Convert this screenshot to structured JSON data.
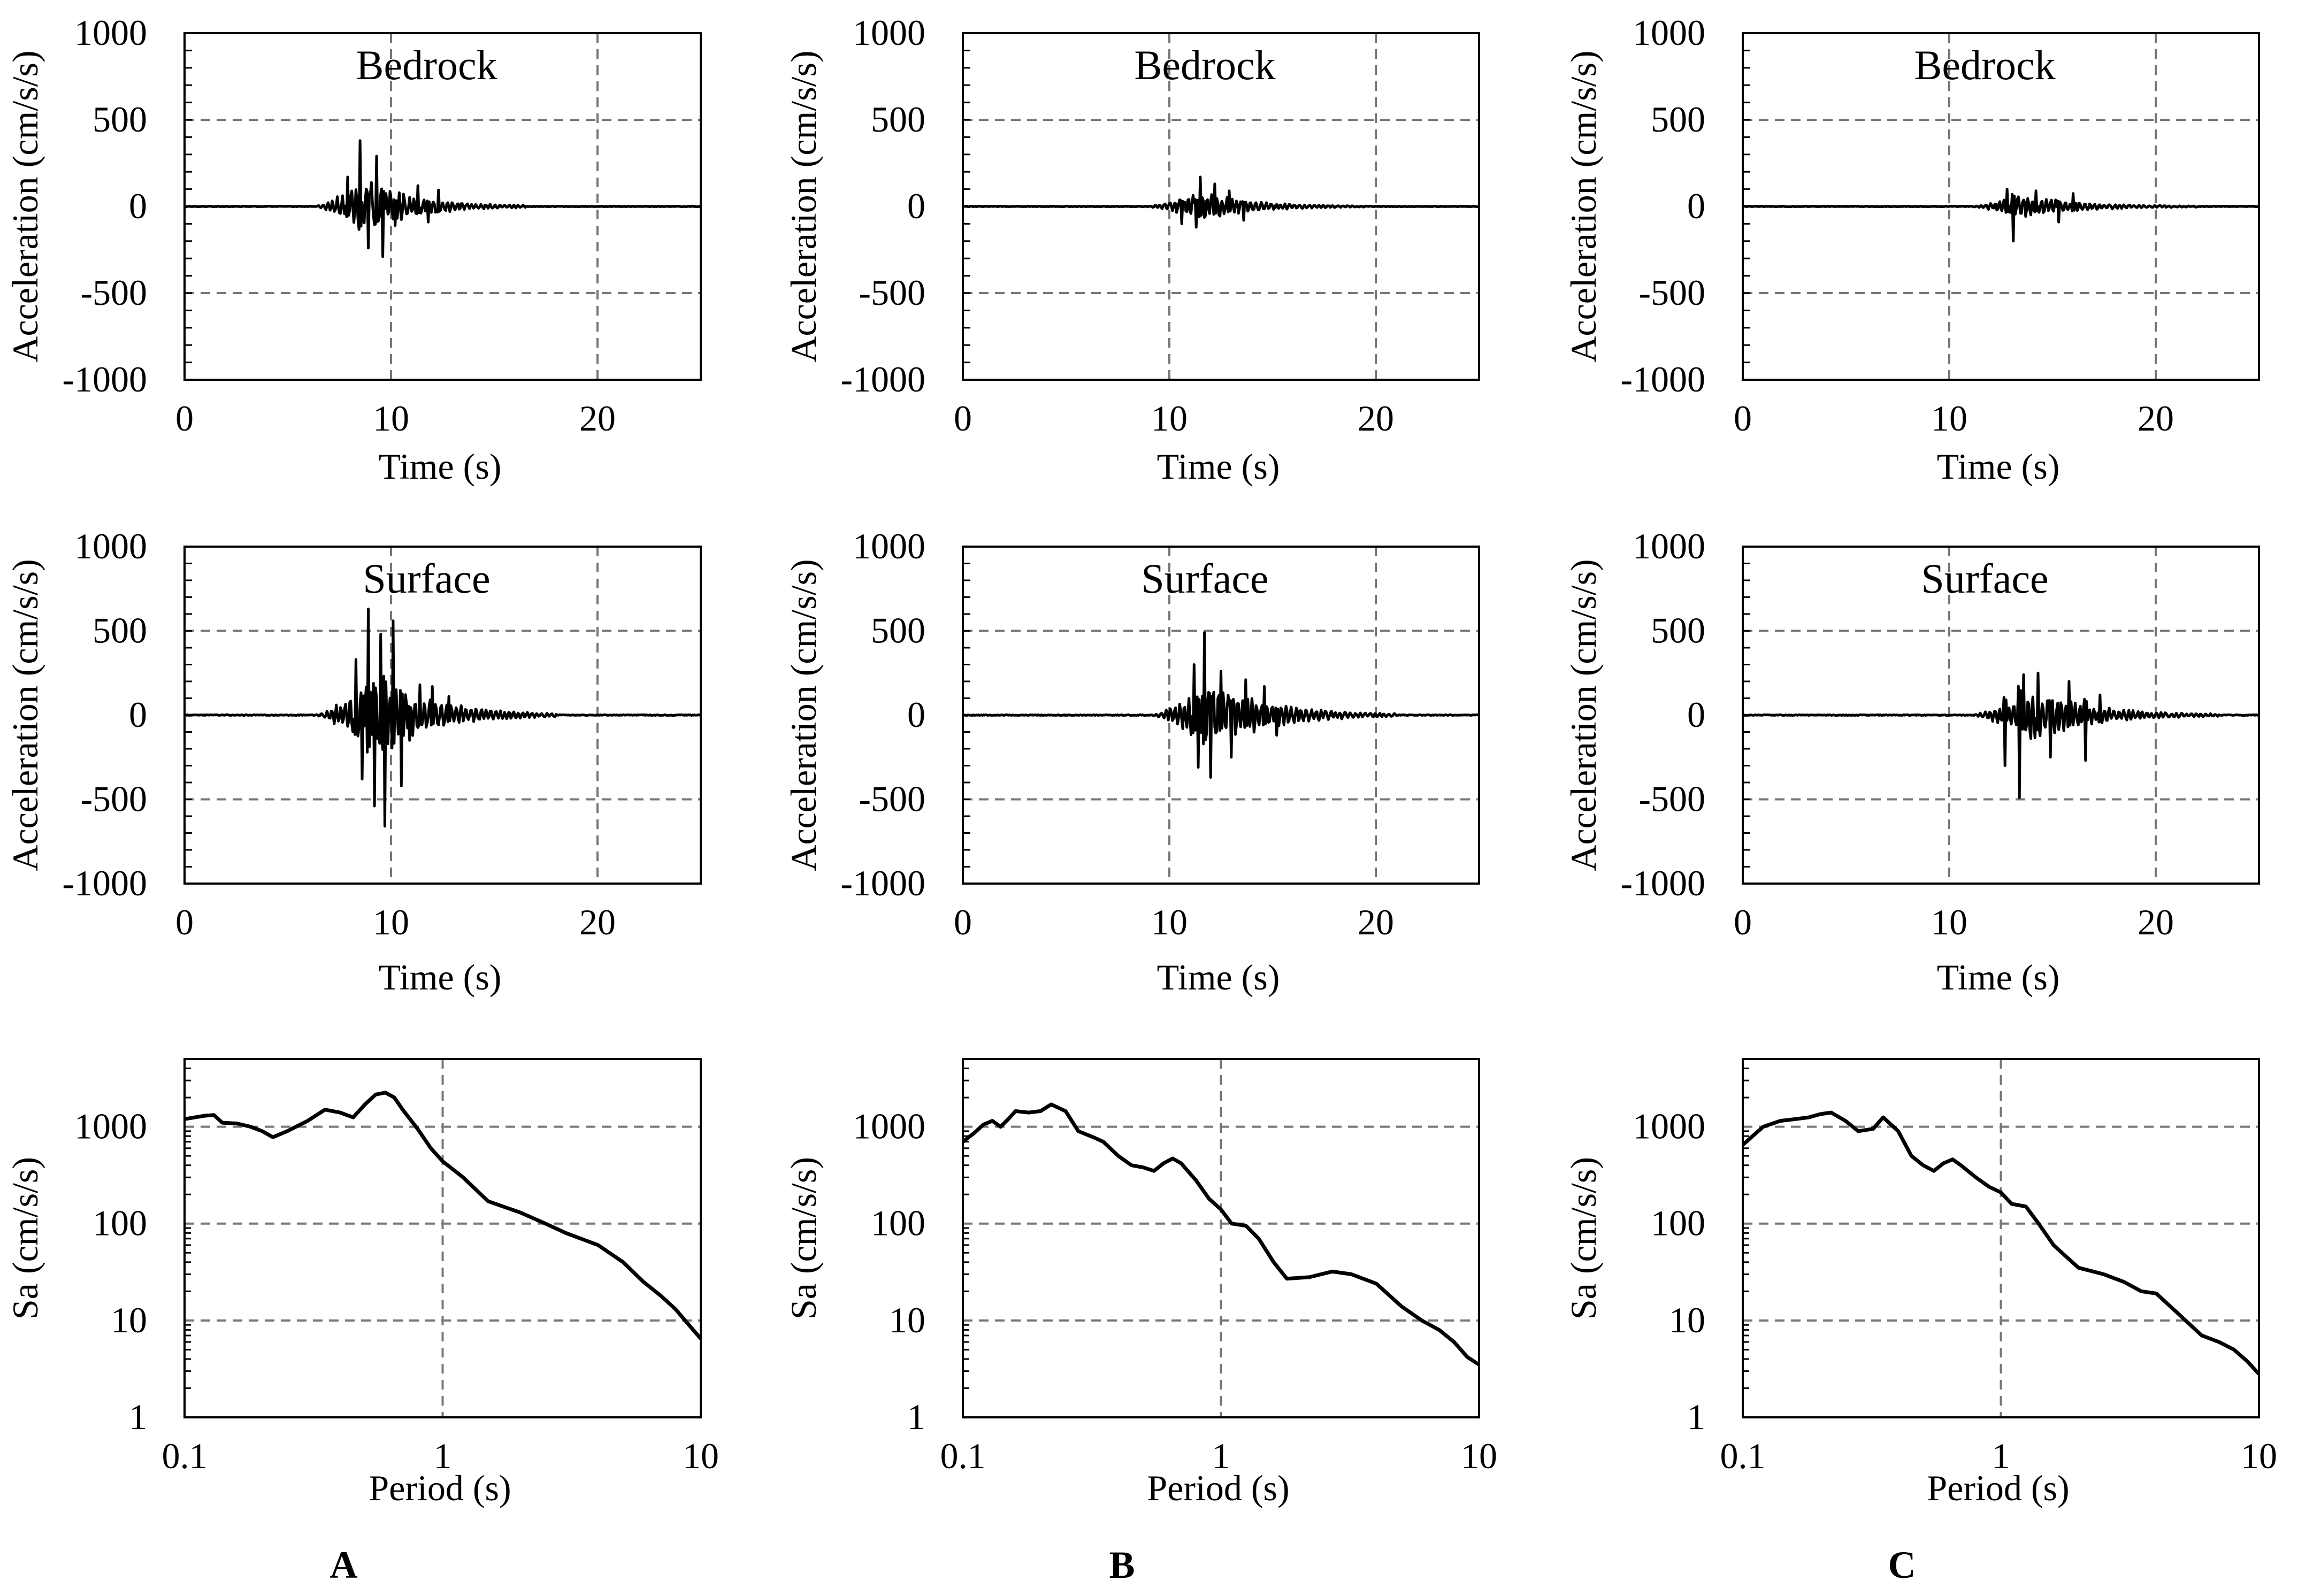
{
  "figure": {
    "columns": [
      "A",
      "B",
      "C"
    ]
  },
  "chart_data": [
    {
      "id": "A-bedrock",
      "column": "A",
      "type": "line",
      "title": "Bedrock",
      "xlabel": "Time (s)",
      "ylabel": "Acceleration (cm/s/s)",
      "xlim": [
        0,
        25
      ],
      "ylim": [
        -1000,
        1000
      ],
      "xticks": [
        0,
        10,
        20
      ],
      "yticks": [
        -1000,
        -500,
        0,
        500,
        1000
      ],
      "grid": "dashed",
      "series": [
        {
          "name": "acceleration",
          "duration": 25,
          "dt": 0.05,
          "envelope": {
            "start": 6.2,
            "peak": 8.7,
            "end": 16.5,
            "base_amp": 150
          },
          "peaks": [
            [
              8.5,
              380
            ],
            [
              8.9,
              -240
            ],
            [
              9.3,
              290
            ],
            [
              9.6,
              -290
            ],
            [
              7.9,
              170
            ],
            [
              10.2,
              -110
            ],
            [
              11.3,
              120
            ],
            [
              11.8,
              -90
            ],
            [
              12.3,
              95
            ]
          ]
        }
      ]
    },
    {
      "id": "B-bedrock",
      "column": "B",
      "type": "line",
      "title": "Bedrock",
      "xlabel": "Time (s)",
      "ylabel": "Acceleration (cm/s/s)",
      "xlim": [
        0,
        25
      ],
      "ylim": [
        -1000,
        1000
      ],
      "xticks": [
        0,
        10,
        20
      ],
      "yticks": [
        -1000,
        -500,
        0,
        500,
        1000
      ],
      "grid": "dashed",
      "series": [
        {
          "name": "acceleration",
          "duration": 25,
          "dt": 0.05,
          "envelope": {
            "start": 8.8,
            "peak": 11.5,
            "end": 19.5,
            "base_amp": 80
          },
          "peaks": [
            [
              11.5,
              170
            ],
            [
              11.3,
              -120
            ],
            [
              12.2,
              130
            ],
            [
              10.6,
              -100
            ],
            [
              12.9,
              90
            ],
            [
              13.6,
              -80
            ]
          ]
        }
      ]
    },
    {
      "id": "C-bedrock",
      "column": "C",
      "type": "line",
      "title": "Bedrock",
      "xlabel": "Time (s)",
      "ylabel": "Acceleration (cm/s/s)",
      "xlim": [
        0,
        25
      ],
      "ylim": [
        -1000,
        1000
      ],
      "xticks": [
        0,
        10,
        20
      ],
      "yticks": [
        -1000,
        -500,
        0,
        500,
        1000
      ],
      "grid": "dashed",
      "series": [
        {
          "name": "acceleration",
          "duration": 25,
          "dt": 0.05,
          "envelope": {
            "start": 11.0,
            "peak": 13.5,
            "end": 22.0,
            "base_amp": 65
          },
          "peaks": [
            [
              13.1,
              -200
            ],
            [
              12.8,
              100
            ],
            [
              14.2,
              90
            ],
            [
              15.3,
              -90
            ],
            [
              16.0,
              75
            ]
          ]
        }
      ]
    },
    {
      "id": "A-surface",
      "column": "A",
      "type": "line",
      "title": "Surface",
      "xlabel": "Time (s)",
      "ylabel": "Acceleration (cm/s/s)",
      "xlim": [
        0,
        25
      ],
      "ylim": [
        -1000,
        1000
      ],
      "xticks": [
        0,
        10,
        20
      ],
      "yticks": [
        -1000,
        -500,
        0,
        500,
        1000
      ],
      "grid": "dashed",
      "series": [
        {
          "name": "acceleration",
          "duration": 25,
          "dt": 0.05,
          "envelope": {
            "start": 6.2,
            "peak": 9.2,
            "end": 18.0,
            "base_amp": 240
          },
          "peaks": [
            [
              8.9,
              630
            ],
            [
              9.7,
              -660
            ],
            [
              10.1,
              560
            ],
            [
              9.2,
              -540
            ],
            [
              9.5,
              480
            ],
            [
              8.3,
              330
            ],
            [
              8.6,
              -380
            ],
            [
              10.5,
              -420
            ],
            [
              11.4,
              180
            ],
            [
              12.0,
              170
            ],
            [
              10.9,
              -150
            ],
            [
              12.8,
              110
            ]
          ]
        }
      ]
    },
    {
      "id": "B-surface",
      "column": "B",
      "type": "line",
      "title": "Surface",
      "xlabel": "Time (s)",
      "ylabel": "Acceleration (cm/s/s)",
      "xlim": [
        0,
        25
      ],
      "ylim": [
        -1000,
        1000
      ],
      "xticks": [
        0,
        10,
        20
      ],
      "yticks": [
        -1000,
        -500,
        0,
        500,
        1000
      ],
      "grid": "dashed",
      "series": [
        {
          "name": "acceleration",
          "duration": 25,
          "dt": 0.05,
          "envelope": {
            "start": 9.0,
            "peak": 12.0,
            "end": 21.0,
            "base_amp": 190
          },
          "peaks": [
            [
              11.7,
              490
            ],
            [
              12.0,
              -370
            ],
            [
              11.2,
              300
            ],
            [
              11.4,
              -310
            ],
            [
              12.5,
              260
            ],
            [
              13.0,
              -250
            ],
            [
              13.7,
              210
            ],
            [
              14.6,
              170
            ],
            [
              15.2,
              -120
            ]
          ]
        }
      ]
    },
    {
      "id": "C-surface",
      "column": "C",
      "type": "line",
      "title": "Surface",
      "xlabel": "Time (s)",
      "ylabel": "Acceleration (cm/s/s)",
      "xlim": [
        0,
        25
      ],
      "ylim": [
        -1000,
        1000
      ],
      "xticks": [
        0,
        10,
        20
      ],
      "yticks": [
        -1000,
        -500,
        0,
        500,
        1000
      ],
      "grid": "dashed",
      "series": [
        {
          "name": "acceleration",
          "duration": 25,
          "dt": 0.05,
          "envelope": {
            "start": 11.0,
            "peak": 14.0,
            "end": 23.0,
            "base_amp": 150
          },
          "peaks": [
            [
              13.4,
              -490
            ],
            [
              12.7,
              -300
            ],
            [
              13.6,
              240
            ],
            [
              14.3,
              250
            ],
            [
              14.9,
              -250
            ],
            [
              15.8,
              200
            ],
            [
              16.6,
              -270
            ],
            [
              17.3,
              120
            ]
          ]
        }
      ]
    },
    {
      "id": "A-spectrum",
      "column": "A",
      "type": "line",
      "xscale": "log",
      "yscale": "log",
      "title": "",
      "xlabel": "Period (s)",
      "ylabel": "Sa (cm/s/s)",
      "xlim": [
        0.1,
        10
      ],
      "ylim": [
        1,
        5000
      ],
      "xticks": [
        0.1,
        1,
        10
      ],
      "yticks": [
        1,
        10,
        100,
        1000
      ],
      "grid": "dashed",
      "series": [
        {
          "name": "Sa",
          "points": [
            [
              0.1,
              1200
            ],
            [
              0.12,
              1300
            ],
            [
              0.13,
              1320
            ],
            [
              0.14,
              1100
            ],
            [
              0.16,
              1080
            ],
            [
              0.18,
              1000
            ],
            [
              0.2,
              900
            ],
            [
              0.22,
              780
            ],
            [
              0.25,
              900
            ],
            [
              0.3,
              1150
            ],
            [
              0.35,
              1500
            ],
            [
              0.4,
              1400
            ],
            [
              0.45,
              1250
            ],
            [
              0.5,
              1700
            ],
            [
              0.55,
              2150
            ],
            [
              0.6,
              2250
            ],
            [
              0.65,
              2000
            ],
            [
              0.7,
              1500
            ],
            [
              0.8,
              950
            ],
            [
              0.9,
              600
            ],
            [
              1.0,
              440
            ],
            [
              1.2,
              300
            ],
            [
              1.5,
              170
            ],
            [
              2.0,
              130
            ],
            [
              2.5,
              100
            ],
            [
              3.0,
              80
            ],
            [
              4.0,
              60
            ],
            [
              5.0,
              40
            ],
            [
              6.0,
              25
            ],
            [
              7.0,
              18
            ],
            [
              8.0,
              13
            ],
            [
              9.0,
              9
            ],
            [
              10.0,
              6.5
            ]
          ]
        }
      ]
    },
    {
      "id": "B-spectrum",
      "column": "B",
      "type": "line",
      "xscale": "log",
      "yscale": "log",
      "title": "",
      "xlabel": "Period (s)",
      "ylabel": "Sa (cm/s/s)",
      "xlim": [
        0.1,
        10
      ],
      "ylim": [
        1,
        5000
      ],
      "xticks": [
        0.1,
        1,
        10
      ],
      "yticks": [
        1,
        10,
        100,
        1000
      ],
      "grid": "dashed",
      "series": [
        {
          "name": "Sa",
          "points": [
            [
              0.1,
              700
            ],
            [
              0.11,
              850
            ],
            [
              0.12,
              1050
            ],
            [
              0.13,
              1150
            ],
            [
              0.14,
              1000
            ],
            [
              0.15,
              1200
            ],
            [
              0.16,
              1450
            ],
            [
              0.18,
              1400
            ],
            [
              0.2,
              1450
            ],
            [
              0.22,
              1700
            ],
            [
              0.25,
              1450
            ],
            [
              0.28,
              900
            ],
            [
              0.32,
              780
            ],
            [
              0.35,
              700
            ],
            [
              0.4,
              500
            ],
            [
              0.45,
              400
            ],
            [
              0.5,
              380
            ],
            [
              0.55,
              350
            ],
            [
              0.6,
              420
            ],
            [
              0.65,
              470
            ],
            [
              0.7,
              420
            ],
            [
              0.8,
              280
            ],
            [
              0.9,
              180
            ],
            [
              1.0,
              140
            ],
            [
              1.1,
              100
            ],
            [
              1.25,
              95
            ],
            [
              1.4,
              70
            ],
            [
              1.6,
              40
            ],
            [
              1.8,
              27
            ],
            [
              2.2,
              28
            ],
            [
              2.7,
              32
            ],
            [
              3.2,
              30
            ],
            [
              4.0,
              24
            ],
            [
              5.0,
              14
            ],
            [
              6.0,
              10
            ],
            [
              7.0,
              8
            ],
            [
              8.0,
              6
            ],
            [
              9.0,
              4.2
            ],
            [
              10.0,
              3.5
            ]
          ]
        }
      ]
    },
    {
      "id": "C-spectrum",
      "column": "C",
      "type": "line",
      "xscale": "log",
      "yscale": "log",
      "title": "",
      "xlabel": "Period (s)",
      "ylabel": "Sa (cm/s/s)",
      "xlim": [
        0.1,
        10
      ],
      "ylim": [
        1,
        5000
      ],
      "xticks": [
        0.1,
        1,
        10
      ],
      "yticks": [
        1,
        10,
        100,
        1000
      ],
      "grid": "dashed",
      "series": [
        {
          "name": "Sa",
          "points": [
            [
              0.1,
              650
            ],
            [
              0.12,
              1000
            ],
            [
              0.14,
              1150
            ],
            [
              0.16,
              1200
            ],
            [
              0.18,
              1250
            ],
            [
              0.2,
              1350
            ],
            [
              0.22,
              1400
            ],
            [
              0.25,
              1150
            ],
            [
              0.28,
              900
            ],
            [
              0.32,
              950
            ],
            [
              0.35,
              1250
            ],
            [
              0.4,
              900
            ],
            [
              0.45,
              500
            ],
            [
              0.5,
              400
            ],
            [
              0.55,
              350
            ],
            [
              0.6,
              420
            ],
            [
              0.65,
              460
            ],
            [
              0.7,
              400
            ],
            [
              0.8,
              300
            ],
            [
              0.9,
              240
            ],
            [
              1.0,
              210
            ],
            [
              1.1,
              160
            ],
            [
              1.25,
              150
            ],
            [
              1.4,
              100
            ],
            [
              1.6,
              60
            ],
            [
              1.8,
              45
            ],
            [
              2.0,
              35
            ],
            [
              2.5,
              30
            ],
            [
              3.0,
              25
            ],
            [
              3.5,
              20
            ],
            [
              4.0,
              19
            ],
            [
              5.0,
              11
            ],
            [
              6.0,
              7
            ],
            [
              7.0,
              6
            ],
            [
              8.0,
              5
            ],
            [
              9.0,
              3.8
            ],
            [
              10.0,
              2.8
            ]
          ]
        }
      ]
    }
  ]
}
